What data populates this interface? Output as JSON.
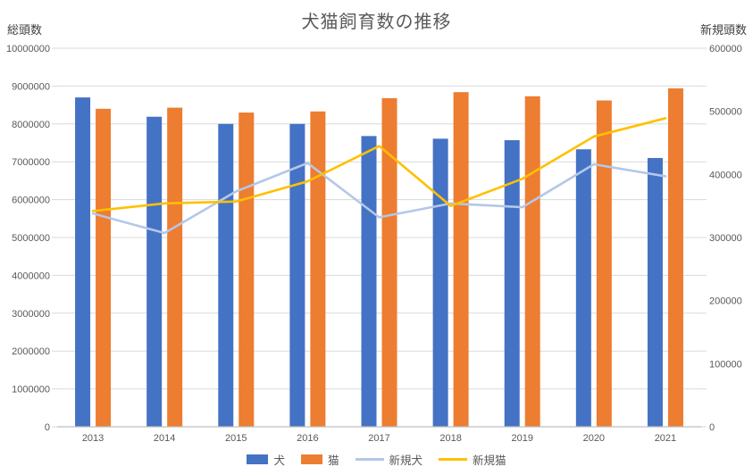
{
  "title": "犬猫飼育数の推移",
  "chart_data": {
    "type": "bar+line combo",
    "categories": [
      "2013",
      "2014",
      "2015",
      "2016",
      "2017",
      "2018",
      "2019",
      "2020",
      "2021"
    ],
    "series": [
      {
        "name": "犬",
        "type": "bar",
        "axis": "left",
        "color": "#4472C4",
        "values": [
          8700000,
          8190000,
          8000000,
          8000000,
          7680000,
          7610000,
          7570000,
          7330000,
          7100000
        ]
      },
      {
        "name": "猫",
        "type": "bar",
        "axis": "left",
        "color": "#ED7D31",
        "values": [
          8400000,
          8430000,
          8300000,
          8330000,
          8680000,
          8840000,
          8730000,
          8620000,
          8940000
        ]
      },
      {
        "name": "新規犬",
        "type": "line",
        "axis": "right",
        "color": "#B4C7E7",
        "values": [
          338000,
          307000,
          373000,
          418000,
          332000,
          354000,
          348000,
          416000,
          397000
        ]
      },
      {
        "name": "新規猫",
        "type": "line",
        "axis": "right",
        "color": "#FFC000",
        "values": [
          342000,
          354000,
          357000,
          389000,
          445000,
          350000,
          393000,
          460000,
          489000
        ]
      }
    ],
    "left_axis": {
      "title": "総頭数",
      "min": 0,
      "max": 10000000,
      "step": 1000000,
      "tick_labels": [
        "0",
        "1000000",
        "2000000",
        "3000000",
        "4000000",
        "5000000",
        "6000000",
        "7000000",
        "8000000",
        "9000000",
        "10000000"
      ]
    },
    "right_axis": {
      "title": "新規頭数",
      "min": 0,
      "max": 600000,
      "step": 100000,
      "tick_labels": [
        "0",
        "100000",
        "200000",
        "300000",
        "400000",
        "500000",
        "600000"
      ]
    },
    "grid": true,
    "legend_position": "bottom"
  },
  "colors": {
    "gridline": "#D9D9D9",
    "axis_line": "#BFBFBF",
    "tick_label": "#595959",
    "title_text": "#595959"
  }
}
